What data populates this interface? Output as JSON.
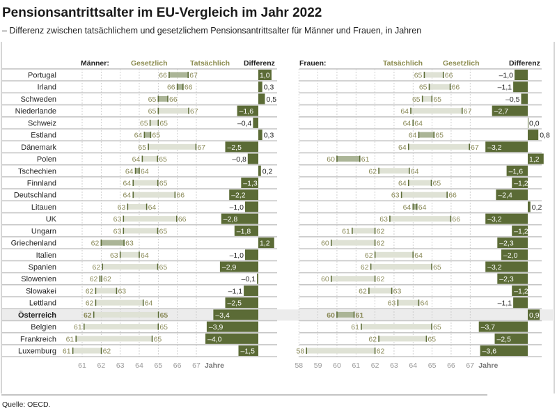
{
  "title": "Pensionsantrittsalter im EU-Vergleich im Jahr 2022",
  "subtitle": "– Differenz zwischen tatsächlichem und gesetzlichem Pensionsantrittsalter für Männer und Frauen, in Jahren",
  "source": "Quelle:  OECD.",
  "colors": {
    "diff_bar": "#5b6b36",
    "range_bar_light": "#dfe2d5",
    "range_bar_dark": "#abb597",
    "number_text": "#8a8a58",
    "header_olive": "#8c8c50",
    "highlight_row": "#ececec"
  },
  "highlight_country": "Österreich",
  "chart_data": [
    {
      "type": "bar",
      "panel": "Männer",
      "header": {
        "group": "Männer:",
        "left": "Gesetzlich",
        "right": "Tatsächlich",
        "diff": "Differenz"
      },
      "xlabel": "Jahre",
      "xlim": [
        61,
        67
      ],
      "xticks": [
        "61",
        "62",
        "63",
        "64",
        "65",
        "66",
        "67"
      ],
      "grid": true,
      "rows": [
        {
          "country": "Portugal",
          "low": 65.57,
          "high": 66.57,
          "low_label": "66",
          "high_label": "67",
          "diff": 1.0,
          "diff_label": "1,0"
        },
        {
          "country": "Irland",
          "low": 66.0,
          "high": 66.3,
          "low_label": "66",
          "high_label": "66",
          "diff": 0.3,
          "diff_label": "0,3"
        },
        {
          "country": "Schweden",
          "low": 65.0,
          "high": 65.5,
          "low_label": "65",
          "high_label": "66",
          "diff": 0.5,
          "diff_label": "0,5"
        },
        {
          "country": "Niederlande",
          "low": 65.0,
          "high": 66.6,
          "low_label": "65",
          "high_label": "67",
          "diff": -1.6,
          "diff_label": "–1,6"
        },
        {
          "country": "Schweiz",
          "low": 64.57,
          "high": 65.0,
          "low_label": "65",
          "high_label": "65",
          "diff": -0.4,
          "diff_label": "–0,4"
        },
        {
          "country": "Estland",
          "low": 64.27,
          "high": 64.6,
          "low_label": "64",
          "high_label": "65",
          "diff": 0.3,
          "diff_label": "0,3"
        },
        {
          "country": "Dänemark",
          "low": 64.48,
          "high": 66.98,
          "low_label": "65",
          "high_label": "67",
          "diff": -2.5,
          "diff_label": "–2,5"
        },
        {
          "country": "Polen",
          "low": 64.16,
          "high": 64.96,
          "low_label": "64",
          "high_label": "65",
          "diff": -0.8,
          "diff_label": "–0,8"
        },
        {
          "country": "Tschechien",
          "low": 63.8,
          "high": 64.0,
          "low_label": "64",
          "high_label": "64",
          "diff": 0.2,
          "diff_label": "0,2"
        },
        {
          "country": "Finnland",
          "low": 63.68,
          "high": 64.98,
          "low_label": "64",
          "high_label": "65",
          "diff": -1.3,
          "diff_label": "–1,3"
        },
        {
          "country": "Deutschland",
          "low": 63.68,
          "high": 65.88,
          "low_label": "64",
          "high_label": "66",
          "diff": -2.2,
          "diff_label": "–2,2"
        },
        {
          "country": "Litauen",
          "low": 63.39,
          "high": 64.39,
          "low_label": "63",
          "high_label": "64",
          "diff": -1.0,
          "diff_label": "–1,0"
        },
        {
          "country": "UK",
          "low": 63.17,
          "high": 65.97,
          "low_label": "63",
          "high_label": "66",
          "diff": -2.8,
          "diff_label": "–2,8"
        },
        {
          "country": "Ungarn",
          "low": 63.17,
          "high": 64.97,
          "low_label": "63",
          "high_label": "65",
          "diff": -1.8,
          "diff_label": "–1,8"
        },
        {
          "country": "Griechenland",
          "low": 62.0,
          "high": 63.2,
          "low_label": "62",
          "high_label": "63",
          "diff": 1.2,
          "diff_label": "1,2"
        },
        {
          "country": "Italien",
          "low": 63.0,
          "high": 64.0,
          "low_label": "63",
          "high_label": "64",
          "diff": -1.0,
          "diff_label": "–1,0"
        },
        {
          "country": "Spanien",
          "low": 62.07,
          "high": 64.97,
          "low_label": "62",
          "high_label": "65",
          "diff": -2.9,
          "diff_label": "–2,9"
        },
        {
          "country": "Slowenien",
          "low": 61.93,
          "high": 62.03,
          "low_label": "62",
          "high_label": "62",
          "diff": -0.1,
          "diff_label": "–0,1"
        },
        {
          "country": "Slowakei",
          "low": 61.71,
          "high": 62.81,
          "low_label": "62",
          "high_label": "63",
          "diff": -1.1,
          "diff_label": "–1,1"
        },
        {
          "country": "Lettland",
          "low": 61.71,
          "high": 64.21,
          "low_label": "62",
          "high_label": "64",
          "diff": -2.5,
          "diff_label": "–2,5"
        },
        {
          "country": "Österreich",
          "low": 61.61,
          "high": 65.01,
          "low_label": "62",
          "high_label": "65",
          "diff": -3.4,
          "diff_label": "–3,4"
        },
        {
          "country": "Belgien",
          "low": 61.1,
          "high": 65.0,
          "low_label": "61",
          "high_label": "65",
          "diff": -3.9,
          "diff_label": "–3,9"
        },
        {
          "country": "Frankreich",
          "low": 60.68,
          "high": 64.68,
          "low_label": "61",
          "high_label": "65",
          "diff": -4.0,
          "diff_label": "–4,0"
        },
        {
          "country": "Luxemburg",
          "low": 60.51,
          "high": 62.01,
          "low_label": "61",
          "high_label": "62",
          "diff": -1.5,
          "diff_label": "–1,5"
        }
      ]
    },
    {
      "type": "bar",
      "panel": "Frauen",
      "header": {
        "group": "Frauen:",
        "left": "Tatsächlich",
        "right": "Gesetzlich",
        "diff": "Differenz"
      },
      "xlabel": "Jahre",
      "xlim": [
        58,
        67
      ],
      "xticks": [
        "58",
        "59",
        "60",
        "61",
        "62",
        "63",
        "64",
        "65",
        "66",
        "67"
      ],
      "grid": true,
      "rows": [
        {
          "country": "Portugal",
          "low": 64.59,
          "high": 65.59,
          "low_label": "65",
          "high_label": "66",
          "diff": -1.0,
          "diff_label": "–1,0"
        },
        {
          "country": "Irland",
          "low": 64.85,
          "high": 65.95,
          "low_label": "65",
          "high_label": "66",
          "diff": -1.1,
          "diff_label": "–1,1"
        },
        {
          "country": "Schweden",
          "low": 64.49,
          "high": 64.99,
          "low_label": "65",
          "high_label": "65",
          "diff": -0.5,
          "diff_label": "–0,5"
        },
        {
          "country": "Niederlande",
          "low": 63.88,
          "high": 66.58,
          "low_label": "64",
          "high_label": "67",
          "diff": -2.7,
          "diff_label": "–2,7"
        },
        {
          "country": "Schweiz",
          "low": 64.0,
          "high": 64.0,
          "low_label": "64",
          "high_label": "64",
          "diff": 0.0,
          "diff_label": "0,0"
        },
        {
          "country": "Estland",
          "low": 64.3,
          "high": 65.1,
          "low_label": "64",
          "high_label": "65",
          "diff": 0.8,
          "diff_label": "0,8"
        },
        {
          "country": "Dänemark",
          "low": 63.76,
          "high": 66.96,
          "low_label": "64",
          "high_label": "67",
          "diff": -3.2,
          "diff_label": "–3,2"
        },
        {
          "country": "Polen",
          "low": 60.0,
          "high": 61.2,
          "low_label": "60",
          "high_label": "61",
          "diff": 1.2,
          "diff_label": "1,2"
        },
        {
          "country": "Tschechien",
          "low": 62.2,
          "high": 63.8,
          "low_label": "62",
          "high_label": "64",
          "diff": -1.6,
          "diff_label": "–1,6"
        },
        {
          "country": "Finnland",
          "low": 63.76,
          "high": 64.96,
          "low_label": "64",
          "high_label": "65",
          "diff": -1.2,
          "diff_label": "–1,2"
        },
        {
          "country": "Deutschland",
          "low": 63.39,
          "high": 65.79,
          "low_label": "63",
          "high_label": "66",
          "diff": -2.4,
          "diff_label": "–2,4"
        },
        {
          "country": "Litauen",
          "low": 64.0,
          "high": 64.2,
          "low_label": "64",
          "high_label": "64",
          "diff": 0.2,
          "diff_label": "0,2"
        },
        {
          "country": "UK",
          "low": 62.78,
          "high": 65.98,
          "low_label": "63",
          "high_label": "66",
          "diff": -3.2,
          "diff_label": "–3,2"
        },
        {
          "country": "Ungarn",
          "low": 60.8,
          "high": 62.0,
          "low_label": "61",
          "high_label": "62",
          "diff": -1.2,
          "diff_label": "–1,2"
        },
        {
          "country": "Griechenland",
          "low": 59.7,
          "high": 62.0,
          "low_label": "60",
          "high_label": "62",
          "diff": -2.3,
          "diff_label": "–2,3"
        },
        {
          "country": "Italien",
          "low": 62.0,
          "high": 64.0,
          "low_label": "62",
          "high_label": "64",
          "diff": -2.0,
          "diff_label": "–2,0"
        },
        {
          "country": "Spanien",
          "low": 61.78,
          "high": 64.98,
          "low_label": "62",
          "high_label": "65",
          "diff": -3.2,
          "diff_label": "–3,2"
        },
        {
          "country": "Slowenien",
          "low": 59.7,
          "high": 62.0,
          "low_label": "60",
          "high_label": "62",
          "diff": -2.3,
          "diff_label": "–2,3"
        },
        {
          "country": "Slowakei",
          "low": 61.68,
          "high": 62.88,
          "low_label": "62",
          "high_label": "63",
          "diff": -1.2,
          "diff_label": "–1,2"
        },
        {
          "country": "Lettland",
          "low": 63.2,
          "high": 64.3,
          "low_label": "63",
          "high_label": "64",
          "diff": -1.1,
          "diff_label": "–1,1"
        },
        {
          "country": "Österreich",
          "low": 60.0,
          "high": 60.9,
          "low_label": "60",
          "high_label": "61",
          "diff": 0.9,
          "diff_label": "0,9"
        },
        {
          "country": "Belgien",
          "low": 61.28,
          "high": 64.98,
          "low_label": "61",
          "high_label": "65",
          "diff": -3.7,
          "diff_label": "–3,7"
        },
        {
          "country": "Frankreich",
          "low": 62.2,
          "high": 64.7,
          "low_label": "62",
          "high_label": "65",
          "diff": -2.5,
          "diff_label": "–2,5"
        },
        {
          "country": "Luxemburg",
          "low": 58.4,
          "high": 62.0,
          "low_label": "58",
          "high_label": "62",
          "diff": -3.6,
          "diff_label": "–3,6"
        }
      ]
    }
  ]
}
